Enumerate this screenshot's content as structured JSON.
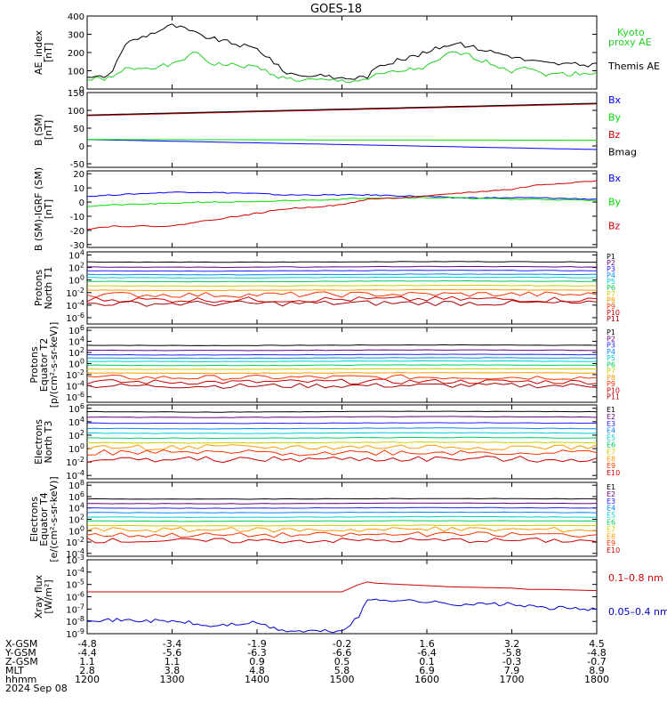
{
  "title": "GOES-18",
  "date_label": "2024 Sep 08",
  "chart_data": [
    {
      "type": "line",
      "ylabel": "AE_index [nT]",
      "ylim": [
        0,
        400
      ],
      "yticks": [
        "400",
        "300",
        "200",
        "100",
        "0"
      ],
      "x": [
        1200,
        1215,
        1230,
        1245,
        1300,
        1315,
        1330,
        1345,
        1400,
        1415,
        1430,
        1445,
        1500,
        1515,
        1530,
        1545,
        1600,
        1615,
        1630,
        1645,
        1700,
        1715,
        1730,
        1745,
        1800
      ],
      "series": [
        {
          "name": "Themis AE",
          "color": "#000000",
          "values": [
            60,
            65,
            90,
            250,
            350,
            330,
            300,
            280,
            220,
            170,
            100,
            80,
            60,
            60,
            70,
            130,
            200,
            230,
            250,
            240,
            180,
            160,
            150,
            140,
            130
          ]
        },
        {
          "name": "Kyoto proxy AE",
          "color": "#22d022",
          "values": [
            50,
            55,
            60,
            110,
            130,
            170,
            200,
            140,
            120,
            90,
            60,
            50,
            45,
            45,
            55,
            80,
            120,
            160,
            200,
            190,
            100,
            130,
            90,
            80,
            90
          ]
        }
      ],
      "legend": [
        "Kyoto proxy AE",
        "Themis AE"
      ],
      "legend_colors": [
        "#22d022",
        "#000000"
      ]
    },
    {
      "type": "line",
      "ylabel": "B (SM) [nT]",
      "ylim": [
        -60,
        150
      ],
      "yticks": [
        "150",
        "100",
        "50",
        "0",
        "-50"
      ],
      "x": [
        1200,
        1800
      ],
      "series": [
        {
          "name": "Bx",
          "color": "#0000ff",
          "values": [
            18,
            -10
          ]
        },
        {
          "name": "By",
          "color": "#00dd00",
          "values": [
            18,
            16
          ]
        },
        {
          "name": "Bz",
          "color": "#d00000",
          "values": [
            85,
            118
          ]
        },
        {
          "name": "Bmag",
          "color": "#000000",
          "values": [
            87,
            120
          ]
        }
      ],
      "legend": [
        "Bx",
        "By",
        "Bz",
        "Bmag"
      ],
      "legend_colors": [
        "#0000ff",
        "#00dd00",
        "#d00000",
        "#000000"
      ]
    },
    {
      "type": "line",
      "ylabel": "B (SM)-IGRF (SM) [nT]",
      "ylim": [
        -32,
        22
      ],
      "yticks": [
        "20",
        "10",
        "0",
        "-10",
        "-20",
        "-30"
      ],
      "x": [
        1200,
        1230,
        1300,
        1330,
        1400,
        1430,
        1500,
        1530,
        1600,
        1630,
        1700,
        1730,
        1800
      ],
      "series": [
        {
          "name": "Bx",
          "color": "#0000ff",
          "values": [
            4,
            5,
            7,
            7,
            6,
            5,
            5,
            5,
            4,
            3,
            3,
            3,
            2
          ]
        },
        {
          "name": "By",
          "color": "#00dd00",
          "values": [
            -3,
            -2,
            -1,
            0,
            0,
            1,
            2,
            3,
            3,
            3,
            2,
            2,
            1
          ]
        },
        {
          "name": "Bz",
          "color": "#d00000",
          "values": [
            -19,
            -17,
            -17,
            -14,
            -8,
            -5,
            -2,
            2,
            4,
            6,
            9,
            12,
            15
          ]
        }
      ],
      "legend": [
        "Bx",
        "By",
        "Bz"
      ],
      "legend_colors": [
        "#0000ff",
        "#00dd00",
        "#d00000"
      ]
    },
    {
      "type": "line",
      "log": true,
      "ylabel": "Protons North T1",
      "yticks": [
        "10^4",
        "10^2",
        "10^0",
        "10^-2",
        "10^-4",
        "10^-6"
      ],
      "ylim_exp": [
        -7,
        4.5
      ],
      "channels": [
        "P1",
        "P2",
        "P3",
        "P4",
        "P5",
        "P6",
        "P7",
        "P8",
        "P9",
        "P10",
        "P11"
      ],
      "levels_log": [
        2.9,
        2.1,
        1.5,
        0.9,
        0.4,
        -0.2,
        -0.9,
        -1.6,
        -2.3,
        -3.1,
        -3.7
      ]
    },
    {
      "type": "line",
      "log": true,
      "ylabel": "Protons Equator T2 [p/(cm²-s-sr-keV)]",
      "yticks": [
        "10^6",
        "10^4",
        "10^2",
        "10^0",
        "10^-2",
        "10^-4",
        "10^-6"
      ],
      "ylim_exp": [
        -7,
        6.5
      ],
      "channels": [
        "P1",
        "P2",
        "P3",
        "P4",
        "P5",
        "P6",
        "P7",
        "P8",
        "P9",
        "P10",
        "P11"
      ],
      "levels_log": [
        3.3,
        2.4,
        1.6,
        1.0,
        0.4,
        -0.3,
        -1.0,
        -1.7,
        -2.5,
        -3.3,
        -4.0
      ]
    },
    {
      "type": "line",
      "log": true,
      "ylabel": "Electrons North T3",
      "yticks": [
        "10^6",
        "10^4",
        "10^2",
        "10^0",
        "10^-2",
        "10^-4"
      ],
      "ylim_exp": [
        -4.5,
        6.5
      ],
      "channels": [
        "E1",
        "E2",
        "E3",
        "E4",
        "E5",
        "E6",
        "E7",
        "E8",
        "E9",
        "E10"
      ],
      "levels_log": [
        5.5,
        4.7,
        3.8,
        3.0,
        2.3,
        1.6,
        0.9,
        0.2,
        -0.6,
        -1.6
      ]
    },
    {
      "type": "line",
      "log": true,
      "ylabel": "Electrons Equator T4 [e/(cm²-s-sr-keV)]",
      "yticks": [
        "10^8",
        "10^6",
        "10^4",
        "10^2",
        "10^0",
        "10^-2",
        "10^-4"
      ],
      "ylim_exp": [
        -4.5,
        8.5
      ],
      "channels": [
        "E1",
        "E2",
        "E3",
        "E4",
        "E5",
        "E6",
        "E7",
        "E8",
        "E9",
        "E10"
      ],
      "levels_log": [
        5.6,
        4.8,
        4.0,
        3.2,
        2.4,
        1.7,
        0.9,
        0.2,
        -0.7,
        -1.7
      ]
    },
    {
      "type": "line",
      "log": true,
      "ylabel": "Xray flux [W/m²]",
      "yticks": [
        "10^-3",
        "10^-4",
        "10^-5",
        "10^-6",
        "10^-7",
        "10^-8",
        "10^-9"
      ],
      "ylim_exp": [
        -9,
        -3
      ],
      "x": [
        1200,
        1220,
        1240,
        1300,
        1320,
        1340,
        1400,
        1420,
        1440,
        1500,
        1520,
        1530,
        1540,
        1600,
        1630,
        1700,
        1720,
        1740,
        1800
      ],
      "series": [
        {
          "name": "0.1–0.8 nm",
          "color": "#d00000",
          "values_log": [
            -5.6,
            -5.6,
            -5.6,
            -5.6,
            -5.6,
            -5.6,
            -5.6,
            -5.6,
            -5.6,
            -5.6,
            -5.0,
            -4.8,
            -4.9,
            -5.1,
            -5.2,
            -5.3,
            -5.4,
            -5.4,
            -5.5
          ]
        },
        {
          "name": "0.05–0.4 nm",
          "color": "#0000cc",
          "values_log": [
            -7.8,
            -7.9,
            -7.9,
            -8.0,
            -8.1,
            -8.4,
            -8.1,
            -8.6,
            -8.8,
            -8.8,
            -7.6,
            -6.3,
            -6.2,
            -6.4,
            -6.6,
            -6.6,
            -6.8,
            -6.9,
            -7.0
          ]
        }
      ],
      "legend": [
        "0.1–0.8 nm",
        "0.05–0.4 nm"
      ],
      "legend_colors": [
        "#d00000",
        "#0000cc"
      ]
    }
  ],
  "xaxis": {
    "ticks": [
      1200,
      1300,
      1400,
      1500,
      1600,
      1700,
      1800
    ],
    "rows": [
      {
        "label": "X-GSM",
        "values": [
          "-4.8",
          "-3.4",
          "-1.9",
          "-0.2",
          "1.6",
          "3.2",
          "4.5"
        ]
      },
      {
        "label": "Y-GSM",
        "values": [
          "-4.4",
          "-5.6",
          "-6.3",
          "-6.6",
          "-6.4",
          "-5.8",
          "-4.8"
        ]
      },
      {
        "label": "Z-GSM",
        "values": [
          "1.1",
          "1.1",
          "0.9",
          "0.5",
          "0.1",
          "-0.3",
          "-0.7"
        ]
      },
      {
        "label": "MLT",
        "values": [
          "2.8",
          "3.8",
          "4.8",
          "5.8",
          "6.9",
          "7.9",
          "8.9"
        ]
      },
      {
        "label": "hhmm",
        "values": [
          "1200",
          "1300",
          "1400",
          "1500",
          "1600",
          "1700",
          "1800"
        ]
      }
    ]
  },
  "colors": {
    "channel_palette": [
      "#000000",
      "#6a0088",
      "#2222ff",
      "#0088ff",
      "#00cccc",
      "#00cc55",
      "#cccc00",
      "#ff9900",
      "#ff3300",
      "#cc0000",
      "#aa0000"
    ]
  }
}
